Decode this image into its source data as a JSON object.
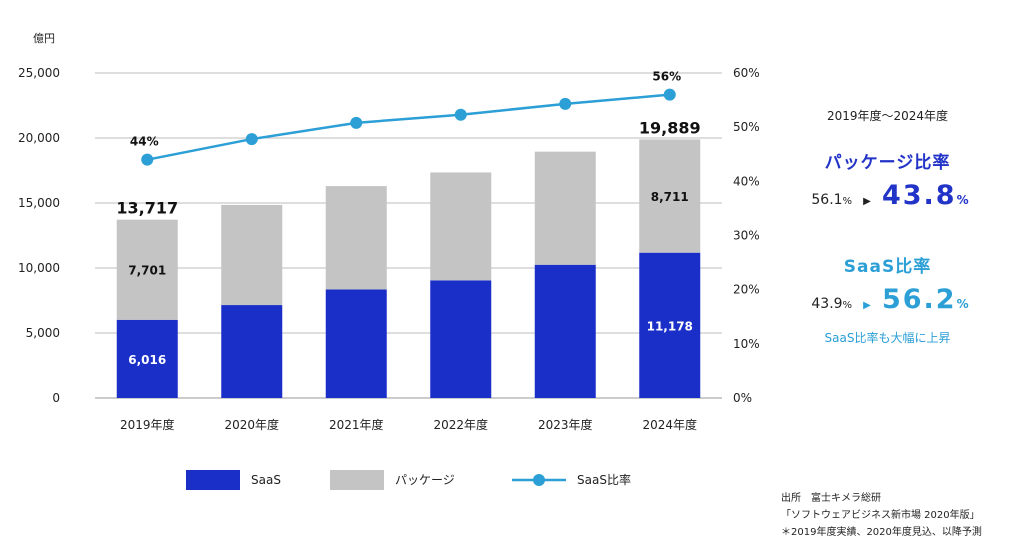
{
  "chart_data": {
    "type": "bar+line",
    "title": "",
    "y_unit_label": "億円",
    "ylim": [
      0,
      25000
    ],
    "y_ticks": [
      "0",
      "5,000",
      "10,000",
      "15,000",
      "20,000",
      "25,000"
    ],
    "y_tick_values": [
      0,
      5000,
      10000,
      15000,
      20000,
      25000
    ],
    "y2lim": [
      0,
      60
    ],
    "y2_ticks": [
      "0%",
      "10%",
      "20%",
      "30%",
      "40%",
      "50%",
      "60%"
    ],
    "y2_tick_values": [
      0,
      10,
      20,
      30,
      40,
      50,
      60
    ],
    "categories": [
      "2019年度",
      "2020年度",
      "2021年度",
      "2022年度",
      "2023年度",
      "2024年度"
    ],
    "series": [
      {
        "name": "SaaS",
        "kind": "bar-stack",
        "color": "#1a2fc8",
        "values": [
          6016,
          7150,
          8350,
          9050,
          10250,
          11178
        ]
      },
      {
        "name": "パッケージ",
        "kind": "bar-stack",
        "color": "#c4c4c4",
        "values": [
          7701,
          7700,
          7950,
          8300,
          8700,
          8711
        ]
      },
      {
        "name": "SaaS比率",
        "kind": "line",
        "axis": "right",
        "color": "#2b9fd6",
        "values": [
          44,
          47.8,
          50.8,
          52.3,
          54.3,
          56
        ]
      }
    ],
    "bar_value_labels": [
      {
        "cat": 0,
        "series": "SaaS",
        "text": "6,016",
        "color": "#ffffff"
      },
      {
        "cat": 0,
        "series": "パッケージ",
        "text": "7,701",
        "color": "#111111"
      },
      {
        "cat": 5,
        "series": "SaaS",
        "text": "11,178",
        "color": "#ffffff"
      },
      {
        "cat": 5,
        "series": "パッケージ",
        "text": "8,711",
        "color": "#111111"
      }
    ],
    "total_labels": [
      {
        "cat": 0,
        "text": "13,717",
        "value": 13717
      },
      {
        "cat": 5,
        "text": "19,889",
        "value": 19889
      }
    ],
    "line_labels": [
      {
        "cat": 0,
        "text": "44%"
      },
      {
        "cat": 5,
        "text": "56%"
      }
    ],
    "legend": [
      {
        "label": "SaaS",
        "type": "box",
        "color": "#1a2fc8"
      },
      {
        "label": "パッケージ",
        "type": "box",
        "color": "#c4c4c4"
      },
      {
        "label": "SaaS比率",
        "type": "line",
        "color": "#2b9fd6"
      }
    ]
  },
  "side_panel": {
    "period": "2019年度〜2024年度",
    "package": {
      "title": "パッケージ比率",
      "from": "56.1",
      "from_unit": "%",
      "arrow": "▶",
      "to": "43.8",
      "to_unit": "%",
      "color": "#2233c8"
    },
    "saas": {
      "title": "SaaS比率",
      "from": "43.9",
      "from_unit": "%",
      "arrow": "▶",
      "to": "56.2",
      "to_unit": "%",
      "color": "#2b9fd6",
      "note": "SaaS比率も大幅に上昇"
    }
  },
  "source": {
    "line1": "出所　富士キメラ総研",
    "line2": "「ソフトウェアビジネス新市場 2020年版」",
    "line3": "＊2019年度実績、2020年度見込、以降予測"
  }
}
